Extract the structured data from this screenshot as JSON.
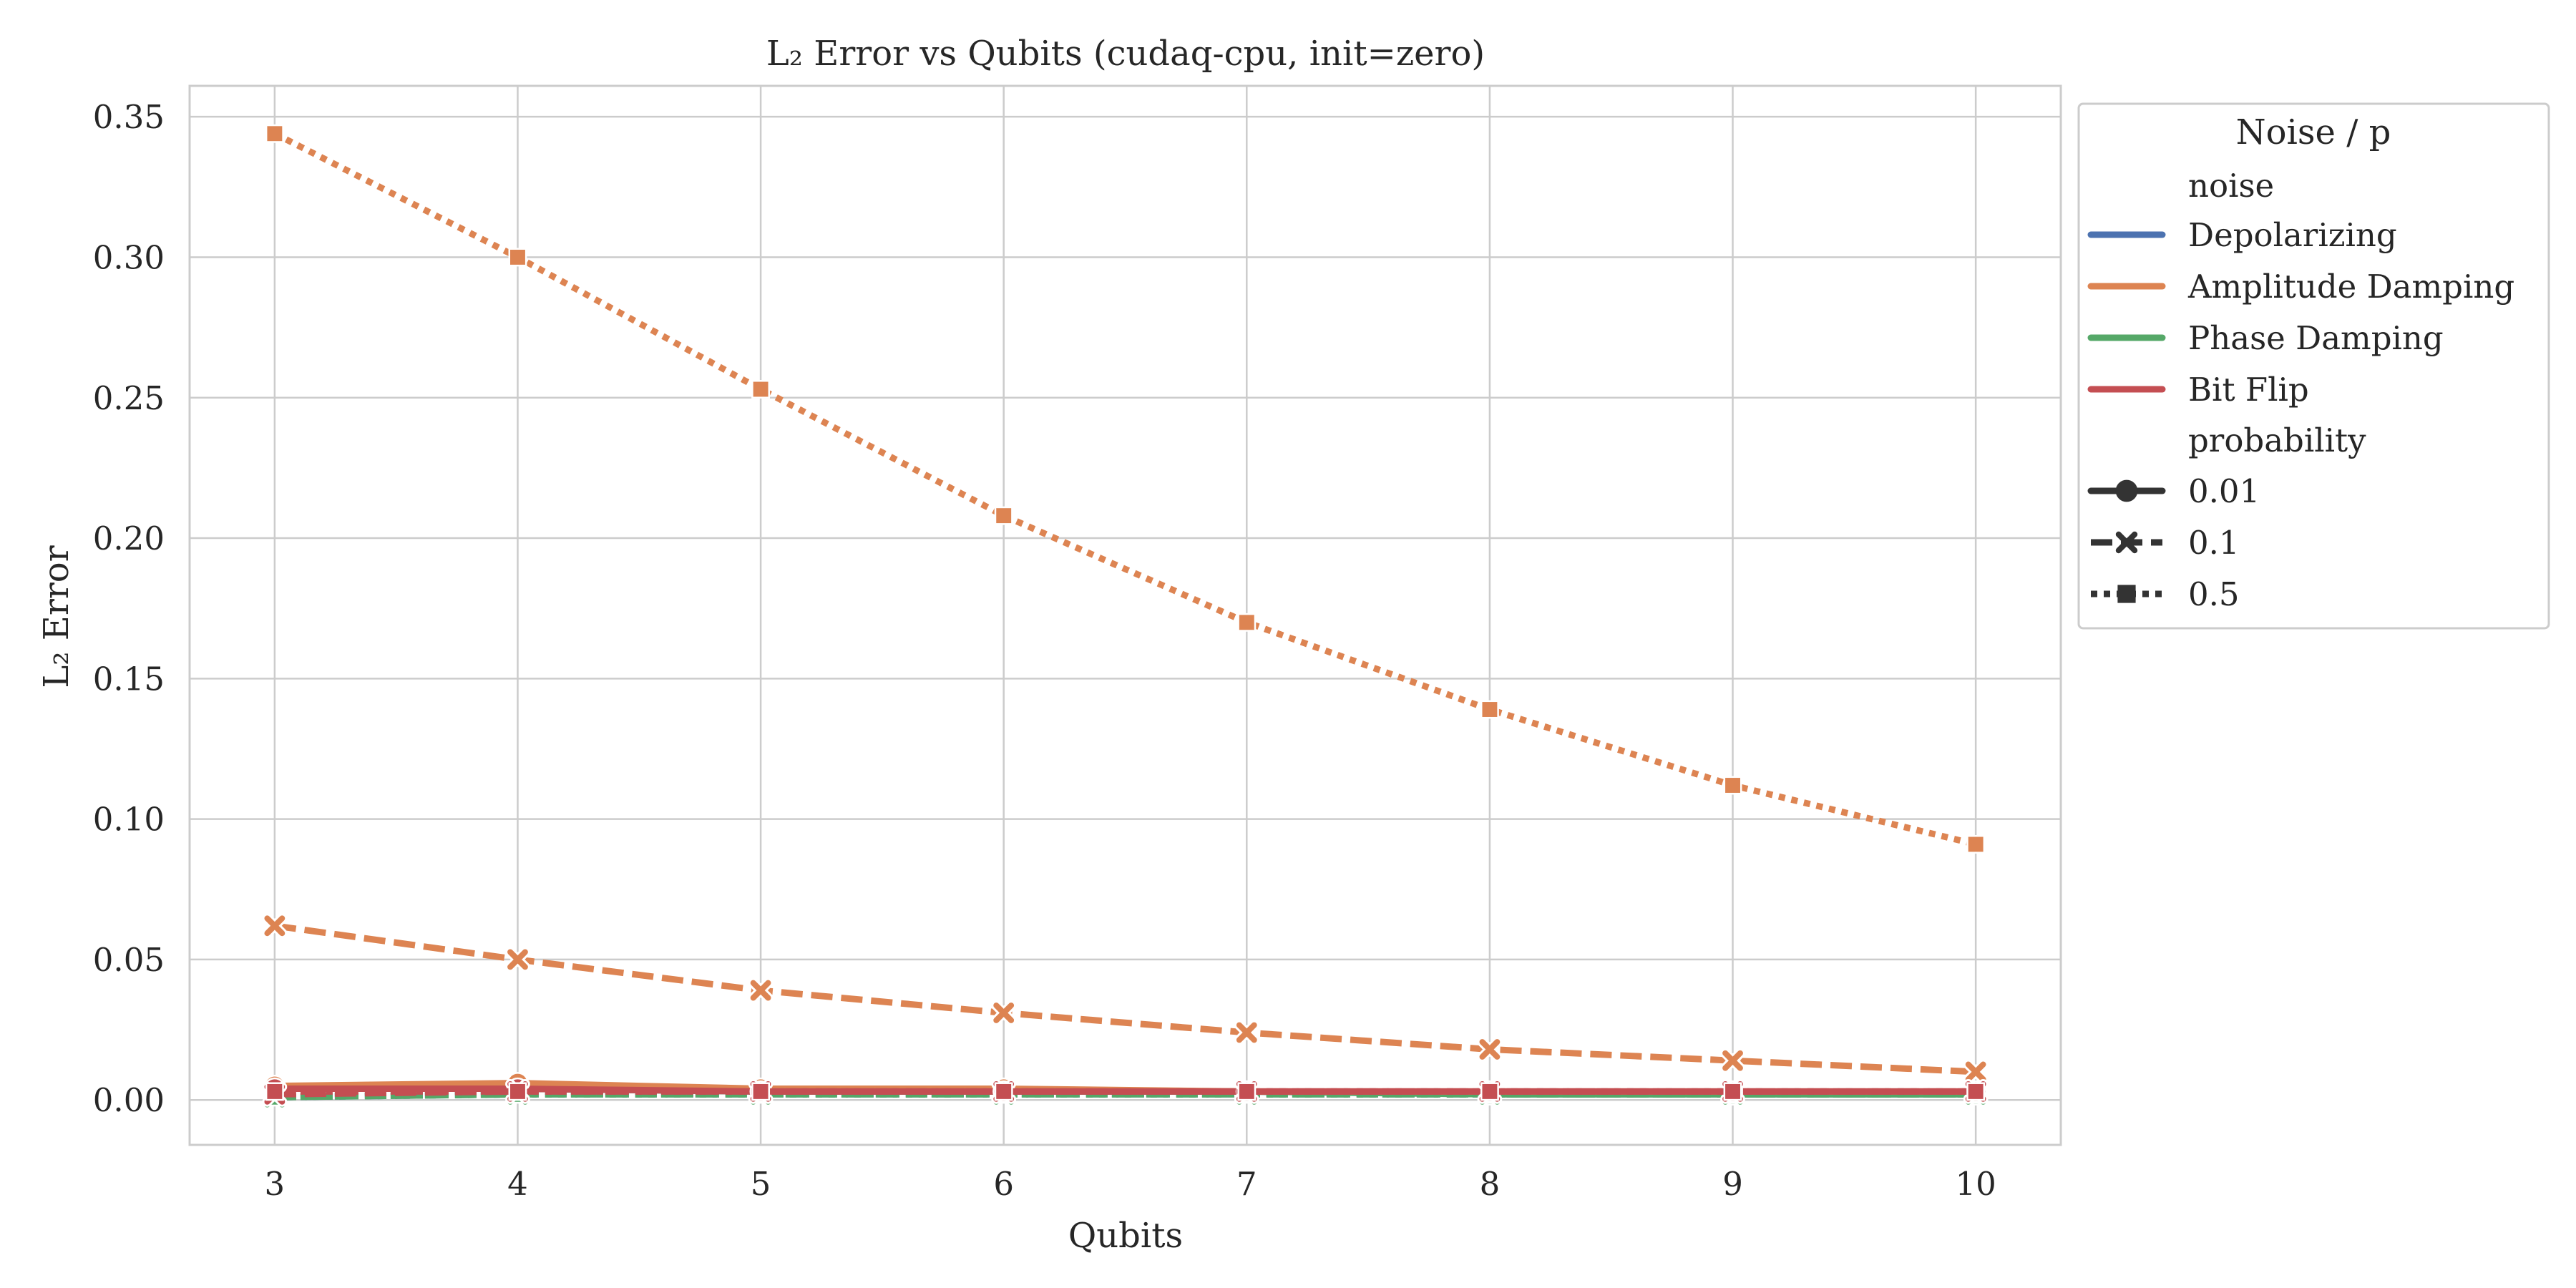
{
  "chart_data": {
    "type": "line",
    "title": "L₂ Error vs Qubits (cudaq-cpu, init=zero)",
    "xlabel": "Qubits",
    "ylabel": "L₂ Error",
    "x": [
      3,
      4,
      5,
      6,
      7,
      8,
      9,
      10
    ],
    "xlim": [
      2.65,
      10.35
    ],
    "ylim": [
      -0.016,
      0.361
    ],
    "xticks": [
      "3",
      "4",
      "5",
      "6",
      "7",
      "8",
      "9",
      "10"
    ],
    "yticks": [
      "0.00",
      "0.05",
      "0.10",
      "0.15",
      "0.20",
      "0.25",
      "0.30",
      "0.35"
    ],
    "ytick_values": [
      0.0,
      0.05,
      0.1,
      0.15,
      0.2,
      0.25,
      0.3,
      0.35
    ],
    "grid": true,
    "legend": {
      "title": "Noise / p",
      "position": "outside-right",
      "hue_header": "noise",
      "style_header": "probability",
      "noise_entries": [
        {
          "label": "Depolarizing",
          "color": "#4c72b0"
        },
        {
          "label": "Amplitude Damping",
          "color": "#dd8452"
        },
        {
          "label": "Phase Damping",
          "color": "#55a868"
        },
        {
          "label": "Bit Flip",
          "color": "#c44e52"
        }
      ],
      "probability_entries": [
        {
          "label": "0.01",
          "dash": "solid",
          "marker": "circle"
        },
        {
          "label": "0.1",
          "dash": "dashed",
          "marker": "x"
        },
        {
          "label": "0.5",
          "dash": "dotted",
          "marker": "square"
        }
      ]
    },
    "series": [
      {
        "noise": "Depolarizing",
        "probability": "0.01",
        "color": "#4c72b0",
        "dash": "solid",
        "marker": "circle",
        "values": [
          0.004,
          0.004,
          0.003,
          0.003,
          0.003,
          0.002,
          0.002,
          0.002
        ]
      },
      {
        "noise": "Depolarizing",
        "probability": "0.1",
        "color": "#4c72b0",
        "dash": "dashed",
        "marker": "x",
        "values": [
          0.001,
          0.002,
          0.002,
          0.002,
          0.002,
          0.002,
          0.002,
          0.002
        ]
      },
      {
        "noise": "Depolarizing",
        "probability": "0.5",
        "color": "#4c72b0",
        "dash": "dotted",
        "marker": "square",
        "values": [
          0.001,
          0.002,
          0.002,
          0.002,
          0.002,
          0.002,
          0.002,
          0.002
        ]
      },
      {
        "noise": "Phase Damping",
        "probability": "0.01",
        "color": "#55a868",
        "dash": "solid",
        "marker": "circle",
        "values": [
          0.004,
          0.004,
          0.003,
          0.003,
          0.003,
          0.002,
          0.002,
          0.002
        ]
      },
      {
        "noise": "Phase Damping",
        "probability": "0.1",
        "color": "#55a868",
        "dash": "dashed",
        "marker": "x",
        "values": [
          0.001,
          0.002,
          0.002,
          0.002,
          0.002,
          0.002,
          0.002,
          0.002
        ]
      },
      {
        "noise": "Phase Damping",
        "probability": "0.5",
        "color": "#55a868",
        "dash": "dotted",
        "marker": "square",
        "values": [
          0.001,
          0.002,
          0.002,
          0.002,
          0.002,
          0.002,
          0.002,
          0.002
        ]
      },
      {
        "noise": "Amplitude Damping",
        "probability": "0.01",
        "color": "#dd8452",
        "dash": "solid",
        "marker": "circle",
        "values": [
          0.005,
          0.006,
          0.004,
          0.004,
          0.003,
          0.003,
          0.003,
          0.003
        ]
      },
      {
        "noise": "Amplitude Damping",
        "probability": "0.1",
        "color": "#dd8452",
        "dash": "dashed",
        "marker": "x",
        "values": [
          0.062,
          0.05,
          0.039,
          0.031,
          0.024,
          0.018,
          0.014,
          0.01
        ]
      },
      {
        "noise": "Amplitude Damping",
        "probability": "0.5",
        "color": "#dd8452",
        "dash": "dotted",
        "marker": "square",
        "values": [
          0.344,
          0.3,
          0.253,
          0.208,
          0.17,
          0.139,
          0.112,
          0.091
        ]
      },
      {
        "noise": "Bit Flip",
        "probability": "0.01",
        "color": "#c44e52",
        "dash": "solid",
        "marker": "circle",
        "values": [
          0.004,
          0.004,
          0.003,
          0.003,
          0.003,
          0.003,
          0.003,
          0.003
        ]
      },
      {
        "noise": "Bit Flip",
        "probability": "0.1",
        "color": "#c44e52",
        "dash": "dashed",
        "marker": "x",
        "values": [
          0.002,
          0.003,
          0.003,
          0.003,
          0.003,
          0.003,
          0.003,
          0.003
        ]
      },
      {
        "noise": "Bit Flip",
        "probability": "0.5",
        "color": "#c44e52",
        "dash": "dotted",
        "marker": "square",
        "values": [
          0.003,
          0.003,
          0.003,
          0.003,
          0.003,
          0.003,
          0.003,
          0.003
        ]
      }
    ]
  }
}
